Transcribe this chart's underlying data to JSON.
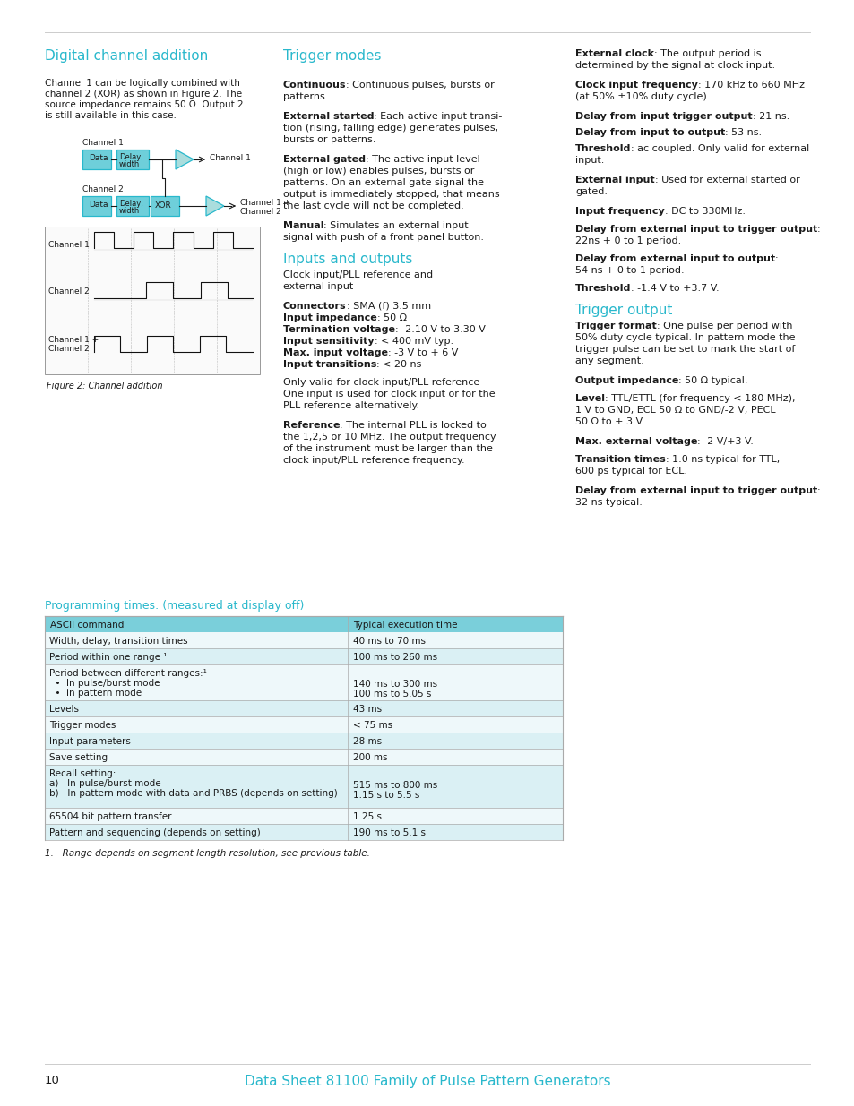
{
  "page_bg": "#ffffff",
  "cyan_color": "#29b8cc",
  "text_color": "#1a1a1a",
  "table_header_bg": "#7acfda",
  "table_row_bg_alt": "#daf0f4",
  "table_row_bg_norm": "#eef8fa",
  "table_border": "#aaaaaa",
  "box_fill": "#6ecfda",
  "box_edge": "#29b8cc",
  "tri_fill": "#aadddd",
  "tri_edge": "#29b8cc",
  "col1_heading": "Digital channel addition",
  "col2_heading": "Trigger modes",
  "col2_heading2": "Inputs and outputs",
  "col3_heading": "Trigger output",
  "prog_heading": "Programming times: (measured at display off)",
  "footnote": "1.   Range depends on segment length resolution, see previous table.",
  "page_num": "10",
  "footer_text": "Data Sheet 81100 Family of Pulse Pattern Generators",
  "table_headers": [
    "ASCII command",
    "Typical execution time"
  ]
}
